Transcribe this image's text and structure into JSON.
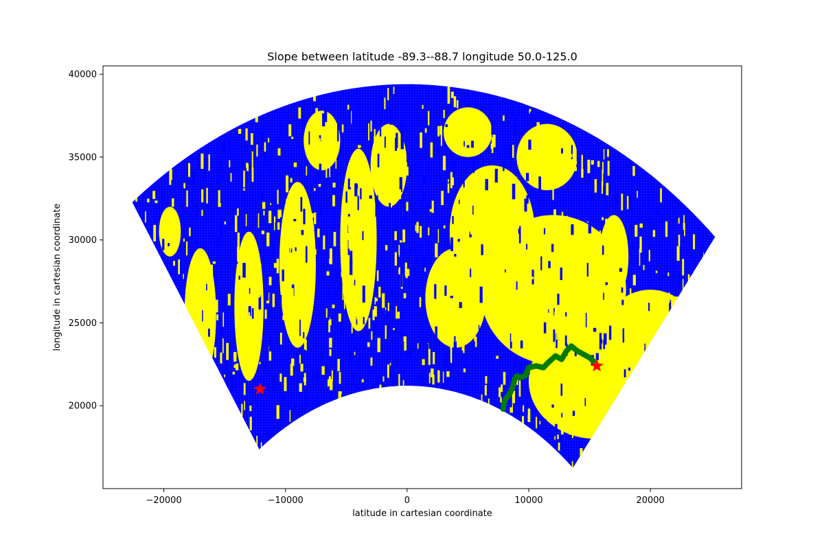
{
  "chart_data": {
    "type": "scatter",
    "title": "Slope between latitude -89.3--88.7 longitude 50.0-125.0",
    "xlabel": "latitude in cartesian coordinate",
    "ylabel": "longitude in cartesian coordinate",
    "xlim": [
      -25000,
      27500
    ],
    "ylim": [
      15000,
      40500
    ],
    "xticks": [
      -20000,
      -10000,
      0,
      10000,
      20000
    ],
    "xtick_labels": [
      "−20000",
      "−10000",
      "0",
      "10000",
      "20000"
    ],
    "yticks": [
      20000,
      25000,
      30000,
      35000,
      40000
    ],
    "ytick_labels": [
      "20000",
      "25000",
      "30000",
      "35000",
      "40000"
    ],
    "grid": false,
    "colors": {
      "low_slope": "#0000ff",
      "high_slope": "#ffff00",
      "path": "#007a00",
      "markers": "#ff0000"
    },
    "sector": {
      "inner_radius": 21200,
      "outer_radius": 39400,
      "angle_from_deg": 50.0,
      "angle_to_deg": 125.0
    },
    "series": [
      {
        "type": "line",
        "color": "#007a00",
        "x": [
          7900,
          7950,
          8100,
          8300,
          8500,
          8700,
          8850,
          9000,
          9300,
          9700,
          10000,
          10600,
          11200,
          11600,
          12200,
          12700,
          13100,
          13500,
          14000,
          14500,
          15000,
          15300
        ],
        "y": [
          19800,
          20100,
          20400,
          20600,
          20800,
          21200,
          21600,
          21800,
          21700,
          21800,
          22300,
          22400,
          22300,
          22600,
          23000,
          22800,
          23300,
          23600,
          23300,
          23100,
          22900,
          22700
        ]
      },
      {
        "type": "scatter",
        "marker": "star",
        "color": "#ff0000",
        "x": [
          -12100,
          15600
        ],
        "y": [
          21000,
          22400
        ]
      }
    ]
  }
}
